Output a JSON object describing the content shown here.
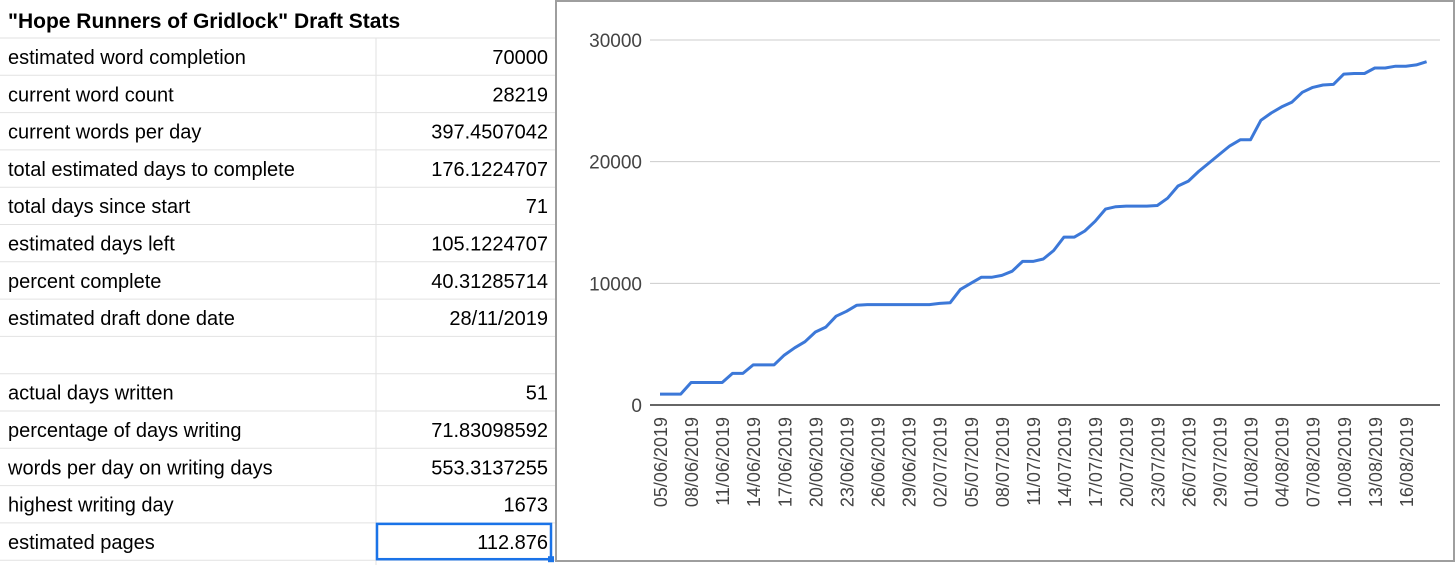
{
  "table": {
    "title": "\"Hope Runners of Gridlock\" Draft Stats",
    "sections": [
      [
        [
          "estimated word completion",
          70000
        ],
        [
          "current word count",
          28219
        ],
        [
          "current words per day",
          397.4507042
        ],
        [
          "total estimated days to complete",
          176.1224707
        ],
        [
          "total days since start",
          71
        ],
        [
          "estimated days left",
          105.1224707
        ],
        [
          "percent complete",
          40.31285714
        ],
        [
          "estimated draft done date",
          "28/11/2019"
        ]
      ],
      [
        [
          "actual days written",
          51
        ],
        [
          "percentage of days writing",
          71.83098592
        ],
        [
          "words per day on writing days",
          553.3137255
        ],
        [
          "highest writing day",
          1673
        ],
        [
          "estimated pages",
          112.876
        ]
      ]
    ]
  },
  "chart_data": {
    "type": "line",
    "color": "#3c78d8",
    "grid": true,
    "categories": [
      "05/06/2019",
      null,
      null,
      "08/06/2019",
      null,
      null,
      "11/06/2019",
      null,
      null,
      "14/06/2019",
      null,
      null,
      "17/06/2019",
      null,
      null,
      "20/06/2019",
      null,
      null,
      "23/06/2019",
      null,
      null,
      "26/06/2019",
      null,
      null,
      "29/06/2019",
      null,
      null,
      "02/07/2019",
      null,
      null,
      "05/07/2019",
      null,
      null,
      "08/07/2019",
      null,
      null,
      "11/07/2019",
      null,
      null,
      "14/07/2019",
      null,
      null,
      "17/07/2019",
      null,
      null,
      "20/07/2019",
      null,
      null,
      "23/07/2019",
      null,
      null,
      "26/07/2019",
      null,
      null,
      "29/07/2019",
      null,
      null,
      "01/08/2019",
      null,
      null,
      "04/08/2019",
      null,
      null,
      "07/08/2019",
      null,
      null,
      "10/08/2019",
      null,
      null,
      "13/08/2019",
      null,
      null,
      "16/08/2019",
      null,
      null
    ],
    "values": [
      900,
      900,
      900,
      1850,
      1850,
      1850,
      1850,
      2600,
      2600,
      3300,
      3300,
      3300,
      4100,
      4700,
      5200,
      6000,
      6400,
      7300,
      7700,
      8200,
      8250,
      8250,
      8250,
      8250,
      8250,
      8250,
      8250,
      8350,
      8400,
      9500,
      10000,
      10500,
      10500,
      10650,
      11000,
      11800,
      11800,
      12000,
      12700,
      13800,
      13800,
      14300,
      15100,
      16100,
      16300,
      16350,
      16350,
      16350,
      16400,
      17000,
      18000,
      18400,
      19200,
      19900,
      20600,
      21300,
      21800,
      21800,
      23400,
      24000,
      24500,
      24900,
      25700,
      26100,
      26300,
      26350,
      27200,
      27250,
      27250,
      27700,
      27700,
      27850,
      27850,
      27950,
      28219
    ],
    "ylim": [
      0,
      30000
    ],
    "yticks": [
      0,
      10000,
      20000,
      30000
    ]
  }
}
